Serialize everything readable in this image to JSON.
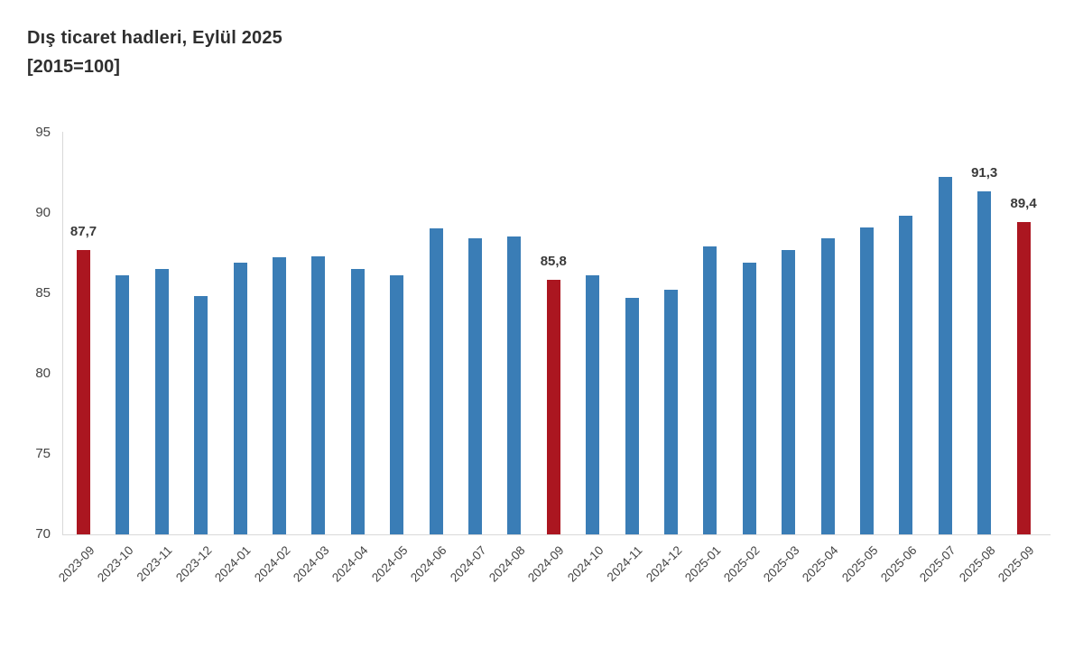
{
  "title": "Dış ticaret hadleri, Eylül 2025",
  "subtitle": "[2015=100]",
  "colors": {
    "bar_blue": "#3a7db6",
    "bar_red": "#ab1620",
    "axis_line": "#d9d9d9",
    "title_text": "#2f2f2f",
    "axis_text": "#444444"
  },
  "chart_data": {
    "type": "bar",
    "title": "Dış ticaret hadleri, Eylül 2025",
    "subtitle": "[2015=100]",
    "categories": [
      "2023-09",
      "2023-10",
      "2023-11",
      "2023-12",
      "2024-01",
      "2024-02",
      "2024-03",
      "2024-04",
      "2024-05",
      "2024-06",
      "2024-07",
      "2024-08",
      "2024-09",
      "2024-10",
      "2024-11",
      "2024-12",
      "2025-01",
      "2025-02",
      "2025-03",
      "2025-04",
      "2025-05",
      "2025-06",
      "2025-07",
      "2025-08",
      "2025-09"
    ],
    "values": [
      87.7,
      86.1,
      86.5,
      84.8,
      86.9,
      87.2,
      87.3,
      86.5,
      86.1,
      89.0,
      88.4,
      88.5,
      85.8,
      86.1,
      84.7,
      85.2,
      87.9,
      86.9,
      87.7,
      88.4,
      89.1,
      89.8,
      92.2,
      91.3,
      89.4
    ],
    "highlight_categories": [
      "2023-09",
      "2024-09",
      "2025-09"
    ],
    "data_labels": {
      "2023-09": "87,7",
      "2024-09": "85,8",
      "2025-08": "91,3",
      "2025-09": "89,4"
    },
    "xlabel": "",
    "ylabel": "",
    "ylim": [
      70,
      95
    ],
    "yticks": [
      95,
      90,
      85,
      80,
      75,
      70
    ],
    "grid": false,
    "legend_position": "none"
  }
}
